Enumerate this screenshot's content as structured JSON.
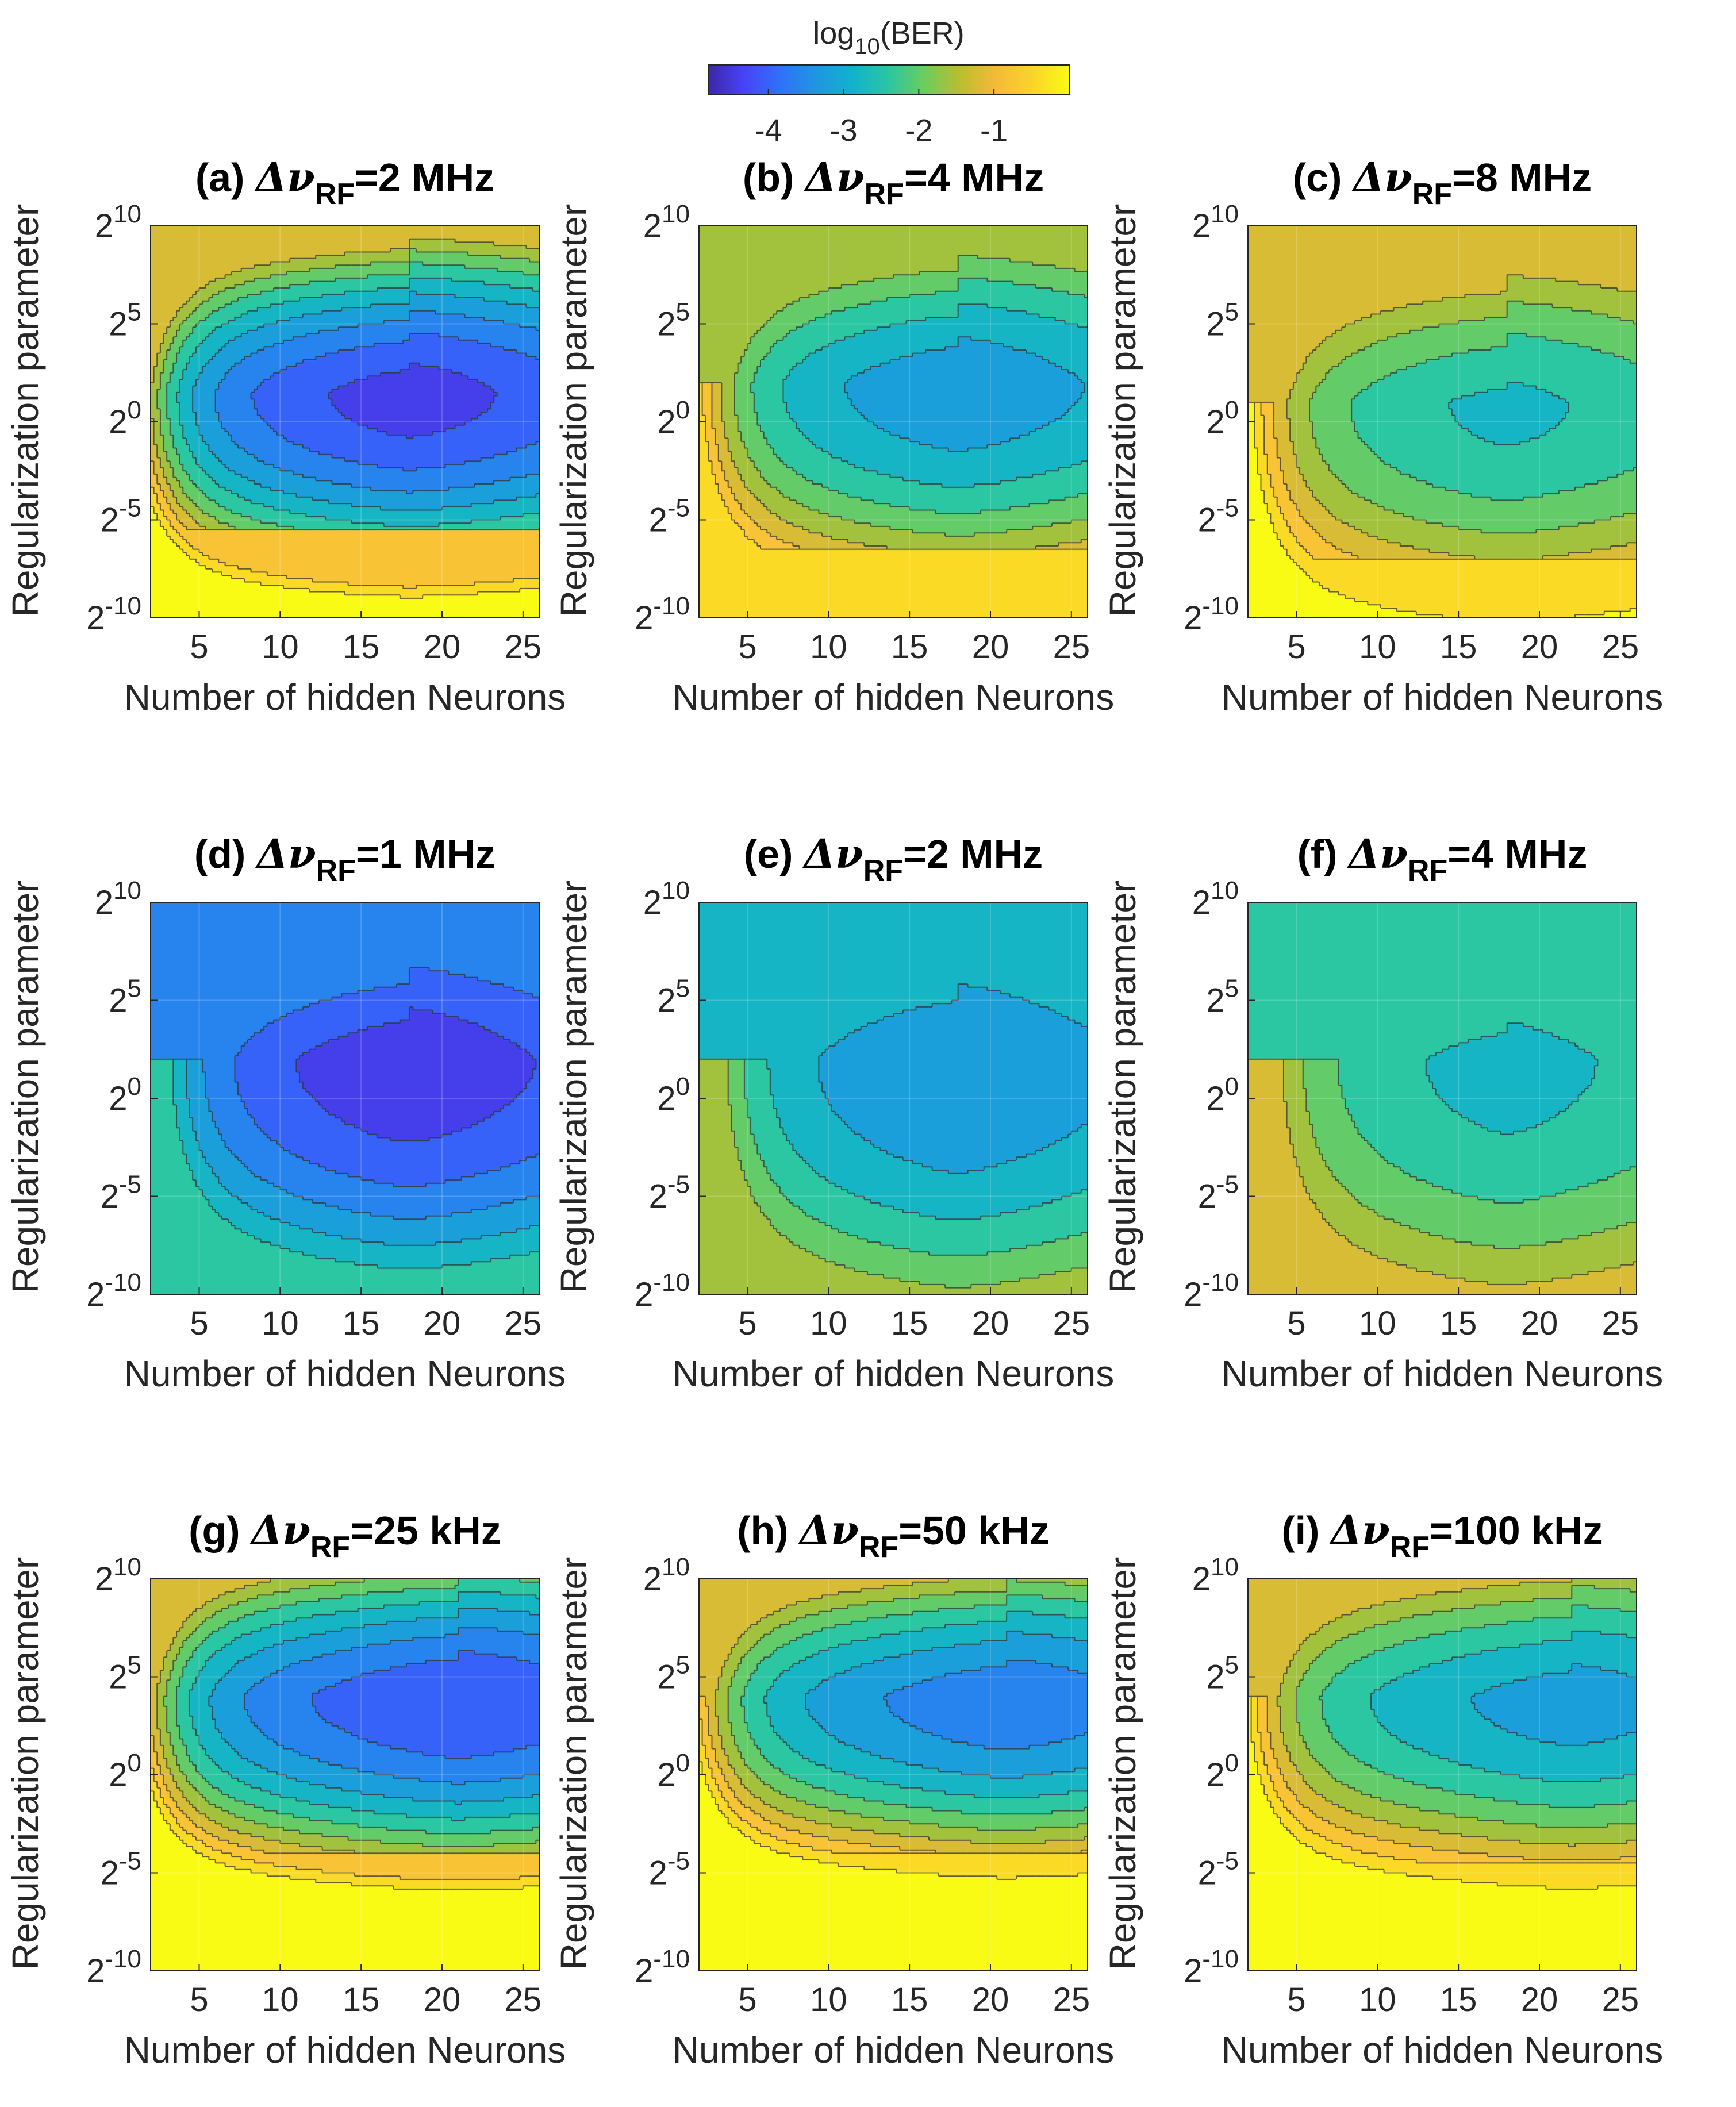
{
  "colorbar": {
    "label_main": "log",
    "label_sub": "10",
    "label_tail": "(BER)",
    "ticks": [
      -4,
      -3,
      -2,
      -1
    ],
    "range": [
      -4.8,
      0
    ],
    "colormap": "parula",
    "colors": [
      "#3e26a8",
      "#4743f8",
      "#2f72fa",
      "#1f96e1",
      "#12b2cc",
      "#2bc6a2",
      "#6ecc5c",
      "#bcbd2f",
      "#f6ba3a",
      "#fbd428",
      "#f9fb15"
    ]
  },
  "chart_data": [
    {
      "id": "a",
      "type": "heatmap",
      "title_prefix": "(a) ",
      "title_symbol": "Δν",
      "title_sub": "RF",
      "title_suffix": "=2 MHz",
      "xlabel": "Number of hidden Neurons",
      "ylabel": "Regularization parameter",
      "xticks": [
        5,
        10,
        15,
        20,
        25
      ],
      "xlim": [
        2,
        26
      ],
      "yticks": [
        {
          "base": "2",
          "exp": "10",
          "value": 10
        },
        {
          "base": "2",
          "exp": "5",
          "value": 5
        },
        {
          "base": "2",
          "exp": "0",
          "value": 0
        },
        {
          "base": "2",
          "exp": "-5",
          "value": -5
        },
        {
          "base": "2",
          "exp": "-10",
          "value": -10
        }
      ],
      "ylim": [
        -10,
        10
      ],
      "yscale": "log2",
      "contour_lines": "dashed",
      "min_value": -4.4,
      "optimum": [
        18,
        1.5
      ],
      "spread_x": 11,
      "spread_y": 3.6,
      "edge_rate": 0.13,
      "high_cut": -5.5,
      "high_side_value": -1.2,
      "low_side_value": -0.7
    },
    {
      "id": "b",
      "type": "heatmap",
      "title_prefix": "(b) ",
      "title_symbol": "Δν",
      "title_sub": "RF",
      "title_suffix": "=4 MHz",
      "xlabel": "Number of hidden Neurons",
      "ylabel": "Regularization parameter",
      "xticks": [
        5,
        10,
        15,
        20,
        25
      ],
      "xlim": [
        2,
        26
      ],
      "yticks": [
        {
          "base": "2",
          "exp": "10",
          "value": 10
        },
        {
          "base": "2",
          "exp": "5",
          "value": 5
        },
        {
          "base": "2",
          "exp": "0",
          "value": 0
        },
        {
          "base": "2",
          "exp": "-5",
          "value": -5
        },
        {
          "base": "2",
          "exp": "-10",
          "value": -10
        }
      ],
      "ylim": [
        -10,
        10
      ],
      "yscale": "log2",
      "contour_lines": "dashed",
      "min_value": -3.3,
      "optimum": [
        18,
        2
      ],
      "spread_x": 12,
      "spread_y": 4.5,
      "edge_rate": 0.12,
      "high_cut": -6.5,
      "high_side_value": -1.5,
      "low_side_value": -0.6
    },
    {
      "id": "c",
      "type": "heatmap",
      "title_prefix": "(c) ",
      "title_symbol": "Δν",
      "title_sub": "RF",
      "title_suffix": "=8 MHz",
      "xlabel": "Number of hidden Neurons",
      "ylabel": "Regularization parameter",
      "xticks": [
        5,
        10,
        15,
        20,
        25
      ],
      "xlim": [
        2,
        26
      ],
      "yticks": [
        {
          "base": "2",
          "exp": "10",
          "value": 10
        },
        {
          "base": "2",
          "exp": "5",
          "value": 5
        },
        {
          "base": "2",
          "exp": "0",
          "value": 0
        },
        {
          "base": "2",
          "exp": "-5",
          "value": -5
        },
        {
          "base": "2",
          "exp": "-10",
          "value": -10
        }
      ],
      "ylim": [
        -10,
        10
      ],
      "yscale": "log2",
      "contour_lines": "dashed",
      "min_value": -2.7,
      "optimum": [
        18,
        1
      ],
      "spread_x": 13,
      "spread_y": 5,
      "edge_rate": 0.12,
      "high_cut": -7,
      "high_side_value": -1.4,
      "low_side_value": -0.55
    },
    {
      "id": "d",
      "type": "heatmap",
      "title_prefix": "(d) ",
      "title_symbol": "Δν",
      "title_sub": "RF",
      "title_suffix": "=1 MHz",
      "xlabel": "Number of hidden Neurons",
      "ylabel": "Regularization parameter",
      "xticks": [
        5,
        10,
        15,
        20,
        25
      ],
      "xlim": [
        2,
        26
      ],
      "yticks": [
        {
          "base": "2",
          "exp": "10",
          "value": 10
        },
        {
          "base": "2",
          "exp": "5",
          "value": 5
        },
        {
          "base": "2",
          "exp": "0",
          "value": 0
        },
        {
          "base": "2",
          "exp": "-5",
          "value": -5
        },
        {
          "base": "2",
          "exp": "-10",
          "value": -10
        }
      ],
      "ylim": [
        -10,
        10
      ],
      "yscale": "log2",
      "contour_lines": "dashed",
      "min_value": -4.5,
      "optimum": [
        18,
        2
      ],
      "spread_x": 12,
      "spread_y": 5.5,
      "edge_rate": 0.12,
      "high_cut": -20,
      "high_side_value": -3.7,
      "low_side_value": -1.6
    },
    {
      "id": "e",
      "type": "heatmap",
      "title_prefix": "(e) ",
      "title_symbol": "Δν",
      "title_sub": "RF",
      "title_suffix": "=2 MHz",
      "xlabel": "Number of hidden Neurons",
      "ylabel": "Regularization parameter",
      "xticks": [
        5,
        10,
        15,
        20,
        25
      ],
      "xlim": [
        2,
        26
      ],
      "yticks": [
        {
          "base": "2",
          "exp": "10",
          "value": 10
        },
        {
          "base": "2",
          "exp": "5",
          "value": 5
        },
        {
          "base": "2",
          "exp": "0",
          "value": 0
        },
        {
          "base": "2",
          "exp": "-5",
          "value": -5
        },
        {
          "base": "2",
          "exp": "-10",
          "value": -10
        }
      ],
      "ylim": [
        -10,
        10
      ],
      "yscale": "log2",
      "contour_lines": "dashed",
      "min_value": -3.4,
      "optimum": [
        18,
        2
      ],
      "spread_x": 13,
      "spread_y": 6.5,
      "edge_rate": 0.1,
      "high_cut": -20,
      "high_side_value": -2.9,
      "low_side_value": -1.4
    },
    {
      "id": "f",
      "type": "heatmap",
      "title_prefix": "(f) ",
      "title_symbol": "Δν",
      "title_sub": "RF",
      "title_suffix": "=4 MHz",
      "xlabel": "Number of hidden Neurons",
      "ylabel": "Regularization parameter",
      "xticks": [
        5,
        10,
        15,
        20,
        25
      ],
      "xlim": [
        2,
        26
      ],
      "yticks": [
        {
          "base": "2",
          "exp": "10",
          "value": 10
        },
        {
          "base": "2",
          "exp": "5",
          "value": 5
        },
        {
          "base": "2",
          "exp": "0",
          "value": 0
        },
        {
          "base": "2",
          "exp": "-5",
          "value": -5
        },
        {
          "base": "2",
          "exp": "-10",
          "value": -10
        }
      ],
      "ylim": [
        -10,
        10
      ],
      "yscale": "log2",
      "contour_lines": "dashed",
      "min_value": -2.75,
      "optimum": [
        18,
        2
      ],
      "spread_x": 14,
      "spread_y": 7,
      "edge_rate": 0.1,
      "high_cut": -20,
      "high_side_value": -2.4,
      "low_side_value": -1.2
    },
    {
      "id": "g",
      "type": "heatmap",
      "title_prefix": "(g) ",
      "title_symbol": "Δν",
      "title_sub": "RF",
      "title_suffix": "=25 kHz",
      "xlabel": "Number of hidden Neurons",
      "ylabel": "Regularization parameter",
      "xticks": [
        5,
        10,
        15,
        20,
        25
      ],
      "xlim": [
        2,
        26
      ],
      "yticks": [
        {
          "base": "2",
          "exp": "10",
          "value": 10
        },
        {
          "base": "2",
          "exp": "5",
          "value": 5
        },
        {
          "base": "2",
          "exp": "0",
          "value": 0
        },
        {
          "base": "2",
          "exp": "-5",
          "value": -5
        },
        {
          "base": "2",
          "exp": "-10",
          "value": -10
        }
      ],
      "ylim": [
        -10,
        10
      ],
      "yscale": "log2",
      "contour_lines": "dashed",
      "min_value": -4.2,
      "optimum": [
        21,
        4
      ],
      "spread_x": 12,
      "spread_y": 3.5,
      "edge_rate": 0.13,
      "high_cut": -4,
      "high_side_value": -1.25,
      "low_side_value": -0.65
    },
    {
      "id": "h",
      "type": "heatmap",
      "title_prefix": "(h) ",
      "title_symbol": "Δν",
      "title_sub": "RF",
      "title_suffix": "=50 kHz",
      "xlabel": "Number of hidden Neurons",
      "ylabel": "Regularization parameter",
      "xticks": [
        5,
        10,
        15,
        20,
        25
      ],
      "xlim": [
        2,
        26
      ],
      "yticks": [
        {
          "base": "2",
          "exp": "10",
          "value": 10
        },
        {
          "base": "2",
          "exp": "5",
          "value": 5
        },
        {
          "base": "2",
          "exp": "0",
          "value": 0
        },
        {
          "base": "2",
          "exp": "-5",
          "value": -5
        },
        {
          "base": "2",
          "exp": "-10",
          "value": -10
        }
      ],
      "ylim": [
        -10,
        10
      ],
      "yscale": "log2",
      "contour_lines": "dashed",
      "min_value": -3.7,
      "optimum": [
        21,
        4
      ],
      "spread_x": 12,
      "spread_y": 3.5,
      "edge_rate": 0.13,
      "high_cut": -4,
      "high_side_value": -1.2,
      "low_side_value": -0.6
    },
    {
      "id": "i",
      "type": "heatmap",
      "title_prefix": "(i) ",
      "title_symbol": "Δν",
      "title_sub": "RF",
      "title_suffix": "=100 kHz",
      "xlabel": "Number of hidden Neurons",
      "ylabel": "Regularization parameter",
      "xticks": [
        5,
        10,
        15,
        20,
        25
      ],
      "xlim": [
        2,
        26
      ],
      "yticks": [
        {
          "base": "2",
          "exp": "10",
          "value": 10
        },
        {
          "base": "2",
          "exp": "5",
          "value": 5
        },
        {
          "base": "2",
          "exp": "0",
          "value": 0
        },
        {
          "base": "2",
          "exp": "-5",
          "value": -5
        },
        {
          "base": "2",
          "exp": "-10",
          "value": -10
        }
      ],
      "ylim": [
        -10,
        10
      ],
      "yscale": "log2",
      "contour_lines": "dashed",
      "min_value": -3.2,
      "optimum": [
        22,
        4
      ],
      "spread_x": 13,
      "spread_y": 4,
      "edge_rate": 0.12,
      "high_cut": -4.5,
      "high_side_value": -1.1,
      "low_side_value": -0.45
    }
  ]
}
